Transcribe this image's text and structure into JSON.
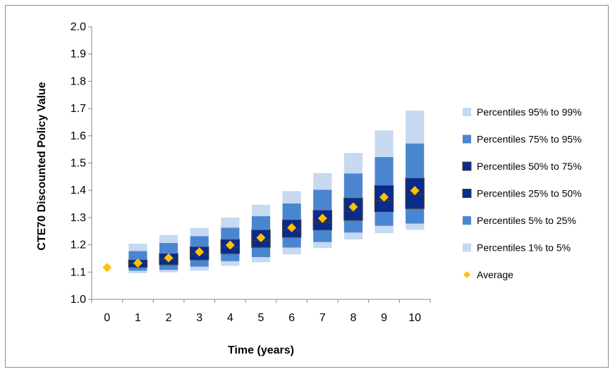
{
  "chart_data": {
    "type": "box",
    "xlabel": "Time (years)",
    "ylabel": "CTE70 Discounted Policy Value",
    "ylim": [
      1.0,
      2.0
    ],
    "yticks": [
      "1.0",
      "1.1",
      "1.2",
      "1.3",
      "1.4",
      "1.5",
      "1.6",
      "1.7",
      "1.8",
      "1.9",
      "2.0"
    ],
    "x": [
      "0",
      "1",
      "2",
      "3",
      "4",
      "5",
      "6",
      "7",
      "8",
      "9",
      "10"
    ],
    "legend_position": "right",
    "series": [
      {
        "name": "Percentiles 95% to 99%",
        "color": "#c6d9f1"
      },
      {
        "name": "Percentiles 75% to 95%",
        "color": "#4a86d0"
      },
      {
        "name": "Percentiles 50% to 75%",
        "color": "#0a2a8c"
      },
      {
        "name": "Percentiles 25% to 50%",
        "color": "#0a2a8c"
      },
      {
        "name": "Percentiles 5% to 25%",
        "color": "#4a86d0"
      },
      {
        "name": "Percentiles 1% to 5%",
        "color": "#c6d9f1"
      },
      {
        "name": "Average",
        "color": "#ffc000"
      }
    ],
    "percentiles": {
      "p1": [
        1.117,
        1.096,
        1.099,
        1.105,
        1.123,
        1.136,
        1.165,
        1.188,
        1.22,
        1.243,
        1.255
      ],
      "p5": [
        1.117,
        1.105,
        1.108,
        1.12,
        1.14,
        1.155,
        1.19,
        1.21,
        1.245,
        1.27,
        1.278
      ],
      "p25": [
        1.117,
        1.118,
        1.127,
        1.145,
        1.168,
        1.191,
        1.228,
        1.255,
        1.29,
        1.322,
        1.333
      ],
      "p50": [
        1.117,
        1.132,
        1.148,
        1.167,
        1.19,
        1.217,
        1.255,
        1.283,
        1.323,
        1.362,
        1.385
      ],
      "p75": [
        1.117,
        1.145,
        1.168,
        1.193,
        1.22,
        1.255,
        1.292,
        1.327,
        1.372,
        1.418,
        1.445
      ],
      "p95": [
        1.117,
        1.177,
        1.207,
        1.232,
        1.263,
        1.305,
        1.352,
        1.402,
        1.462,
        1.522,
        1.572
      ],
      "p99": [
        1.117,
        1.204,
        1.236,
        1.262,
        1.3,
        1.347,
        1.397,
        1.463,
        1.537,
        1.62,
        1.692
      ]
    },
    "average": [
      1.117,
      1.133,
      1.152,
      1.174,
      1.199,
      1.226,
      1.263,
      1.297,
      1.339,
      1.375,
      1.399
    ]
  }
}
